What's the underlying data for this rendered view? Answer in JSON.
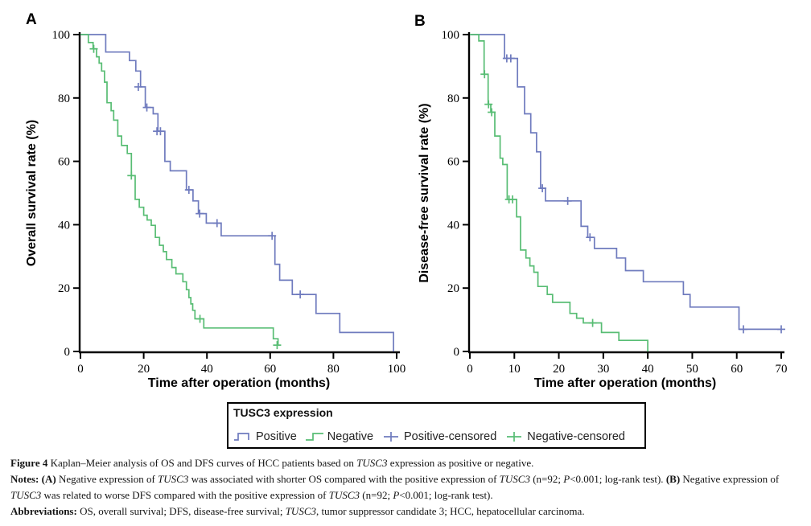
{
  "colors": {
    "positive": "#6f7bbe",
    "negative": "#58bd74",
    "axis": "#000000"
  },
  "legend": {
    "title": "TUSC3 expression",
    "items": [
      {
        "label": "Positive",
        "glyph": "step-positive",
        "color": "#6f7bbe"
      },
      {
        "label": "Negative",
        "glyph": "step-negative",
        "color": "#58bd74"
      },
      {
        "label": "Positive-censored",
        "glyph": "plus",
        "color": "#6f7bbe"
      },
      {
        "label": "Negative-censored",
        "glyph": "plus",
        "color": "#58bd74"
      }
    ]
  },
  "chart_data": [
    {
      "type": "line",
      "panel_label": "A",
      "xlabel": "Time after operation (months)",
      "ylabel": "Overall survival rate (%)",
      "xlim": [
        0,
        100
      ],
      "ylim": [
        0,
        100
      ],
      "xticks": [
        0,
        20,
        40,
        60,
        80,
        100
      ],
      "yticks": [
        0,
        20,
        40,
        60,
        80,
        100
      ],
      "grid": false,
      "legend_position": "bottom",
      "series": [
        {
          "name": "Positive",
          "color": "#6f7bbe",
          "steps": [
            [
              0,
              100
            ],
            [
              8,
              94.5
            ],
            [
              15.5,
              91.8
            ],
            [
              17.5,
              88.5
            ],
            [
              19,
              83.5
            ],
            [
              20.5,
              77
            ],
            [
              23,
              75
            ],
            [
              24.5,
              69.5
            ],
            [
              26.7,
              60
            ],
            [
              28.4,
              57
            ],
            [
              33.5,
              51
            ],
            [
              35.6,
              47.5
            ],
            [
              37.3,
              43.5
            ],
            [
              39.8,
              40.5
            ],
            [
              44.5,
              36.5
            ],
            [
              61.5,
              27.5
            ],
            [
              63,
              22.5
            ],
            [
              67,
              18
            ],
            [
              74.5,
              12
            ],
            [
              82,
              6
            ],
            [
              99,
              0
            ]
          ]
        },
        {
          "name": "Negative",
          "color": "#58bd74",
          "steps": [
            [
              0,
              100
            ],
            [
              2.5,
              97.5
            ],
            [
              4,
              95.5
            ],
            [
              5.1,
              93
            ],
            [
              5.9,
              91
            ],
            [
              6.7,
              88.5
            ],
            [
              7.6,
              85
            ],
            [
              8.4,
              78.5
            ],
            [
              9.7,
              76
            ],
            [
              10.5,
              73
            ],
            [
              11.8,
              68
            ],
            [
              13,
              65
            ],
            [
              14.8,
              62.5
            ],
            [
              16.1,
              55.5
            ],
            [
              17.3,
              48
            ],
            [
              18.6,
              45.5
            ],
            [
              20,
              43
            ],
            [
              21.1,
              41.5
            ],
            [
              22.4,
              39.8
            ],
            [
              23.7,
              36
            ],
            [
              25,
              33.5
            ],
            [
              26.2,
              31.5
            ],
            [
              27.2,
              29
            ],
            [
              28.9,
              26.5
            ],
            [
              30.2,
              24.5
            ],
            [
              32.4,
              22
            ],
            [
              33.5,
              19.5
            ],
            [
              34.3,
              17
            ],
            [
              34.9,
              15
            ],
            [
              35.5,
              13
            ],
            [
              36.2,
              10.3
            ],
            [
              39,
              7.4
            ],
            [
              61,
              4
            ],
            [
              62.5,
              2
            ]
          ]
        }
      ],
      "censored": [
        {
          "name": "Positive-censored",
          "color": "#6f7bbe",
          "points": [
            [
              18.3,
              83.5
            ],
            [
              21,
              77
            ],
            [
              24.2,
              69.5
            ],
            [
              25.3,
              69.5
            ],
            [
              34.3,
              51
            ],
            [
              37.7,
              43.5
            ],
            [
              43.2,
              40.5
            ],
            [
              60.6,
              36.5
            ],
            [
              69.5,
              18
            ]
          ]
        },
        {
          "name": "Negative-censored",
          "color": "#58bd74",
          "points": [
            [
              4.2,
              95.5
            ],
            [
              16.1,
              55.5
            ],
            [
              37.8,
              10.3
            ],
            [
              62.2,
              2
            ]
          ]
        }
      ]
    },
    {
      "type": "line",
      "panel_label": "B",
      "xlabel": "Time after operation (months)",
      "ylabel": "Disease-free survival rate (%)",
      "xlim": [
        0,
        70
      ],
      "ylim": [
        0,
        100
      ],
      "xticks": [
        0,
        10,
        20,
        30,
        40,
        50,
        60,
        70
      ],
      "yticks": [
        0,
        20,
        40,
        60,
        80,
        100
      ],
      "grid": false,
      "legend_position": "bottom",
      "series": [
        {
          "name": "Positive",
          "color": "#6f7bbe",
          "steps": [
            [
              0,
              100
            ],
            [
              7.8,
              92.5
            ],
            [
              10.7,
              83.5
            ],
            [
              12.3,
              75
            ],
            [
              13.7,
              69
            ],
            [
              15,
              63
            ],
            [
              15.9,
              51.5
            ],
            [
              17,
              47.5
            ],
            [
              25,
              39.5
            ],
            [
              26.5,
              36
            ],
            [
              28,
              32.5
            ],
            [
              33,
              29.5
            ],
            [
              35,
              25.5
            ],
            [
              39,
              22
            ],
            [
              48,
              18
            ],
            [
              49.5,
              14
            ],
            [
              60.5,
              7
            ],
            [
              70,
              7
            ]
          ]
        },
        {
          "name": "Negative",
          "color": "#58bd74",
          "steps": [
            [
              0,
              100
            ],
            [
              2,
              98
            ],
            [
              3.2,
              87.5
            ],
            [
              4.1,
              78
            ],
            [
              4.7,
              75.5
            ],
            [
              5.6,
              68
            ],
            [
              6.8,
              61
            ],
            [
              7.4,
              59
            ],
            [
              8.4,
              48
            ],
            [
              10.5,
              42.5
            ],
            [
              11.4,
              32
            ],
            [
              12.6,
              29.5
            ],
            [
              13.5,
              27
            ],
            [
              14.4,
              25
            ],
            [
              15.3,
              20.5
            ],
            [
              17.4,
              18
            ],
            [
              18.6,
              15.5
            ],
            [
              22.5,
              12
            ],
            [
              24,
              10.5
            ],
            [
              25.5,
              9
            ],
            [
              29.6,
              6
            ],
            [
              33.5,
              3.5
            ],
            [
              40,
              0
            ]
          ]
        }
      ],
      "censored": [
        {
          "name": "Positive-censored",
          "color": "#6f7bbe",
          "points": [
            [
              8.3,
              92.5
            ],
            [
              9.2,
              92.5
            ],
            [
              16.3,
              51.5
            ],
            [
              22,
              47.5
            ],
            [
              27,
              36
            ],
            [
              61.5,
              7
            ],
            [
              70,
              7
            ]
          ]
        },
        {
          "name": "Negative-censored",
          "color": "#58bd74",
          "points": [
            [
              3.3,
              87.5
            ],
            [
              4.2,
              78
            ],
            [
              4.9,
              75.5
            ],
            [
              8.8,
              48
            ],
            [
              9.6,
              48
            ],
            [
              27.6,
              9
            ]
          ]
        }
      ]
    }
  ],
  "caption": {
    "lines": [
      [
        {
          "t": "Figure 4 ",
          "b": 1
        },
        {
          "t": "Kaplan–Meier analysis of OS and DFS curves of HCC patients based on "
        },
        {
          "t": "TUSC3",
          "i": 1
        },
        {
          "t": " expression as positive or negative."
        }
      ],
      [
        {
          "t": "Notes:",
          "b": 1
        },
        {
          "t": " "
        },
        {
          "t": "(A)",
          "b": 1
        },
        {
          "t": " Negative expression of "
        },
        {
          "t": "TUSC3",
          "i": 1
        },
        {
          "t": " was associated with shorter OS compared with the positive expression of "
        },
        {
          "t": "TUSC3",
          "i": 1
        },
        {
          "t": " (n=92; "
        },
        {
          "t": "P",
          "i": 1
        },
        {
          "t": "<0.001; log-rank test). "
        },
        {
          "t": "(B)",
          "b": 1
        },
        {
          "t": " Negative expression of "
        },
        {
          "t": "TUSC3",
          "i": 1
        },
        {
          "t": " was related to worse DFS compared with the positive expression of "
        },
        {
          "t": "TUSC3",
          "i": 1
        },
        {
          "t": " (n=92; "
        },
        {
          "t": "P",
          "i": 1
        },
        {
          "t": "<0.001; log-rank test)."
        }
      ],
      [
        {
          "t": "Abbreviations:",
          "b": 1
        },
        {
          "t": " OS, overall survival; DFS, disease-free survival; "
        },
        {
          "t": "TUSC3",
          "i": 1
        },
        {
          "t": ", tumor suppressor candidate 3; HCC, hepatocellular carcinoma."
        }
      ]
    ]
  }
}
